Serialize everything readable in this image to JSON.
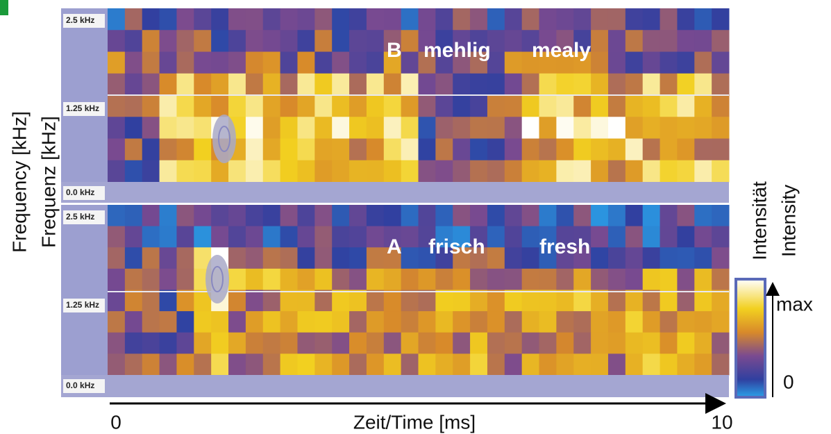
{
  "panels": [
    {
      "label_letter": "B",
      "label_de": "mehlig",
      "label_en": "mealy",
      "ticks": [
        "2.5 kHz",
        "1.25 kHz",
        "0.0 kHz"
      ]
    },
    {
      "label_letter": "A",
      "label_de": "frisch",
      "label_en": "fresh",
      "ticks": [
        "2.5 kHz",
        "1.25 kHz",
        "0.0 kHz"
      ]
    }
  ],
  "y_axis": {
    "label_en": "Frequency [kHz]",
    "label_de": "Frequenz [kHz]"
  },
  "x_axis": {
    "start": "0",
    "label": "Zeit/Time [ms]",
    "end": "10"
  },
  "colorbar": {
    "label_de": "Intensität",
    "label_en": "Intensity",
    "max": "max",
    "min": "0"
  }
}
